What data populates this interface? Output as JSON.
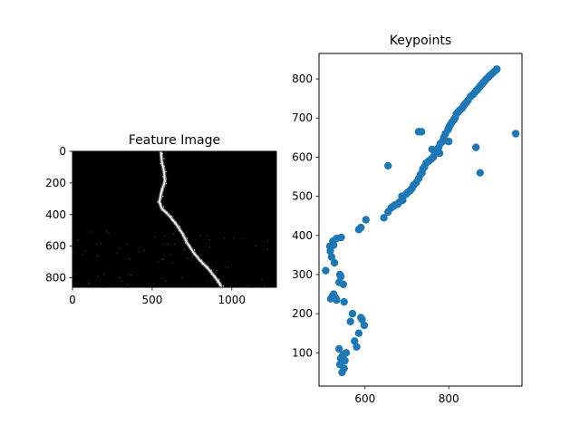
{
  "figure": {
    "background": "#ffffff"
  },
  "chart_data": [
    {
      "type": "heatmap",
      "title": "Feature Image",
      "xlabel": "",
      "ylabel": "",
      "xlim": [
        0,
        1280
      ],
      "ylim": [
        860,
        0
      ],
      "x_ticks": [
        0,
        500,
        1000
      ],
      "y_ticks": [
        0,
        200,
        400,
        600,
        800
      ],
      "colormap": "gray",
      "background_color": "#000000",
      "feature_color": "#ffffff",
      "ridge_path": [
        [
          555,
          0
        ],
        [
          560,
          60
        ],
        [
          575,
          130
        ],
        [
          580,
          190
        ],
        [
          560,
          250
        ],
        [
          545,
          320
        ],
        [
          560,
          360
        ],
        [
          610,
          410
        ],
        [
          650,
          460
        ],
        [
          690,
          520
        ],
        [
          720,
          580
        ],
        [
          760,
          640
        ],
        [
          800,
          690
        ],
        [
          850,
          740
        ],
        [
          890,
          790
        ],
        [
          920,
          830
        ],
        [
          935,
          860
        ]
      ]
    },
    {
      "type": "scatter",
      "title": "Keypoints",
      "xlabel": "",
      "ylabel": "",
      "xlim": [
        490,
        975
      ],
      "ylim": [
        15,
        865
      ],
      "x_ticks": [
        600,
        800
      ],
      "y_ticks": [
        100,
        200,
        300,
        400,
        500,
        600,
        700,
        800
      ],
      "marker_color": "#1f77b4",
      "x": [
        545,
        550,
        540,
        542,
        548,
        555,
        538,
        552,
        545,
        580,
        575,
        585,
        565,
        570,
        598,
        590,
        593,
        550,
        530,
        522,
        518,
        525,
        532,
        542,
        538,
        548,
        540,
        506,
        527,
        520,
        517,
        516,
        523,
        532,
        543,
        525,
        585,
        590,
        602,
        645,
        655,
        662,
        668,
        672,
        678,
        682,
        690,
        688,
        698,
        702,
        708,
        712,
        716,
        722,
        728,
        732,
        736,
        738,
        742,
        746,
        752,
        758,
        763,
        768,
        772,
        776,
        780,
        785,
        788,
        792,
        798,
        800,
        802,
        805,
        808,
        812,
        815,
        818,
        822,
        826,
        832,
        835,
        838,
        842,
        846,
        852,
        858,
        862,
        866,
        870,
        874,
        878,
        882,
        886,
        890,
        895,
        900,
        905,
        910,
        915,
        728,
        735,
        760,
        778,
        800,
        865,
        875,
        960,
        655
      ],
      "y": [
        50,
        60,
        70,
        85,
        95,
        100,
        110,
        80,
        90,
        115,
        130,
        150,
        180,
        200,
        170,
        190,
        185,
        230,
        240,
        245,
        238,
        250,
        235,
        295,
        280,
        275,
        300,
        310,
        330,
        345,
        360,
        372,
        385,
        392,
        395,
        375,
        415,
        420,
        440,
        445,
        460,
        470,
        475,
        478,
        480,
        485,
        490,
        500,
        505,
        510,
        515,
        520,
        528,
        535,
        545,
        555,
        560,
        570,
        575,
        585,
        590,
        595,
        600,
        610,
        620,
        625,
        635,
        640,
        650,
        660,
        670,
        675,
        680,
        685,
        690,
        695,
        700,
        710,
        715,
        720,
        725,
        730,
        735,
        740,
        745,
        755,
        760,
        765,
        770,
        775,
        780,
        785,
        790,
        795,
        800,
        805,
        810,
        815,
        820,
        825,
        665,
        665,
        620,
        610,
        640,
        625,
        560,
        660,
        578
      ]
    }
  ]
}
